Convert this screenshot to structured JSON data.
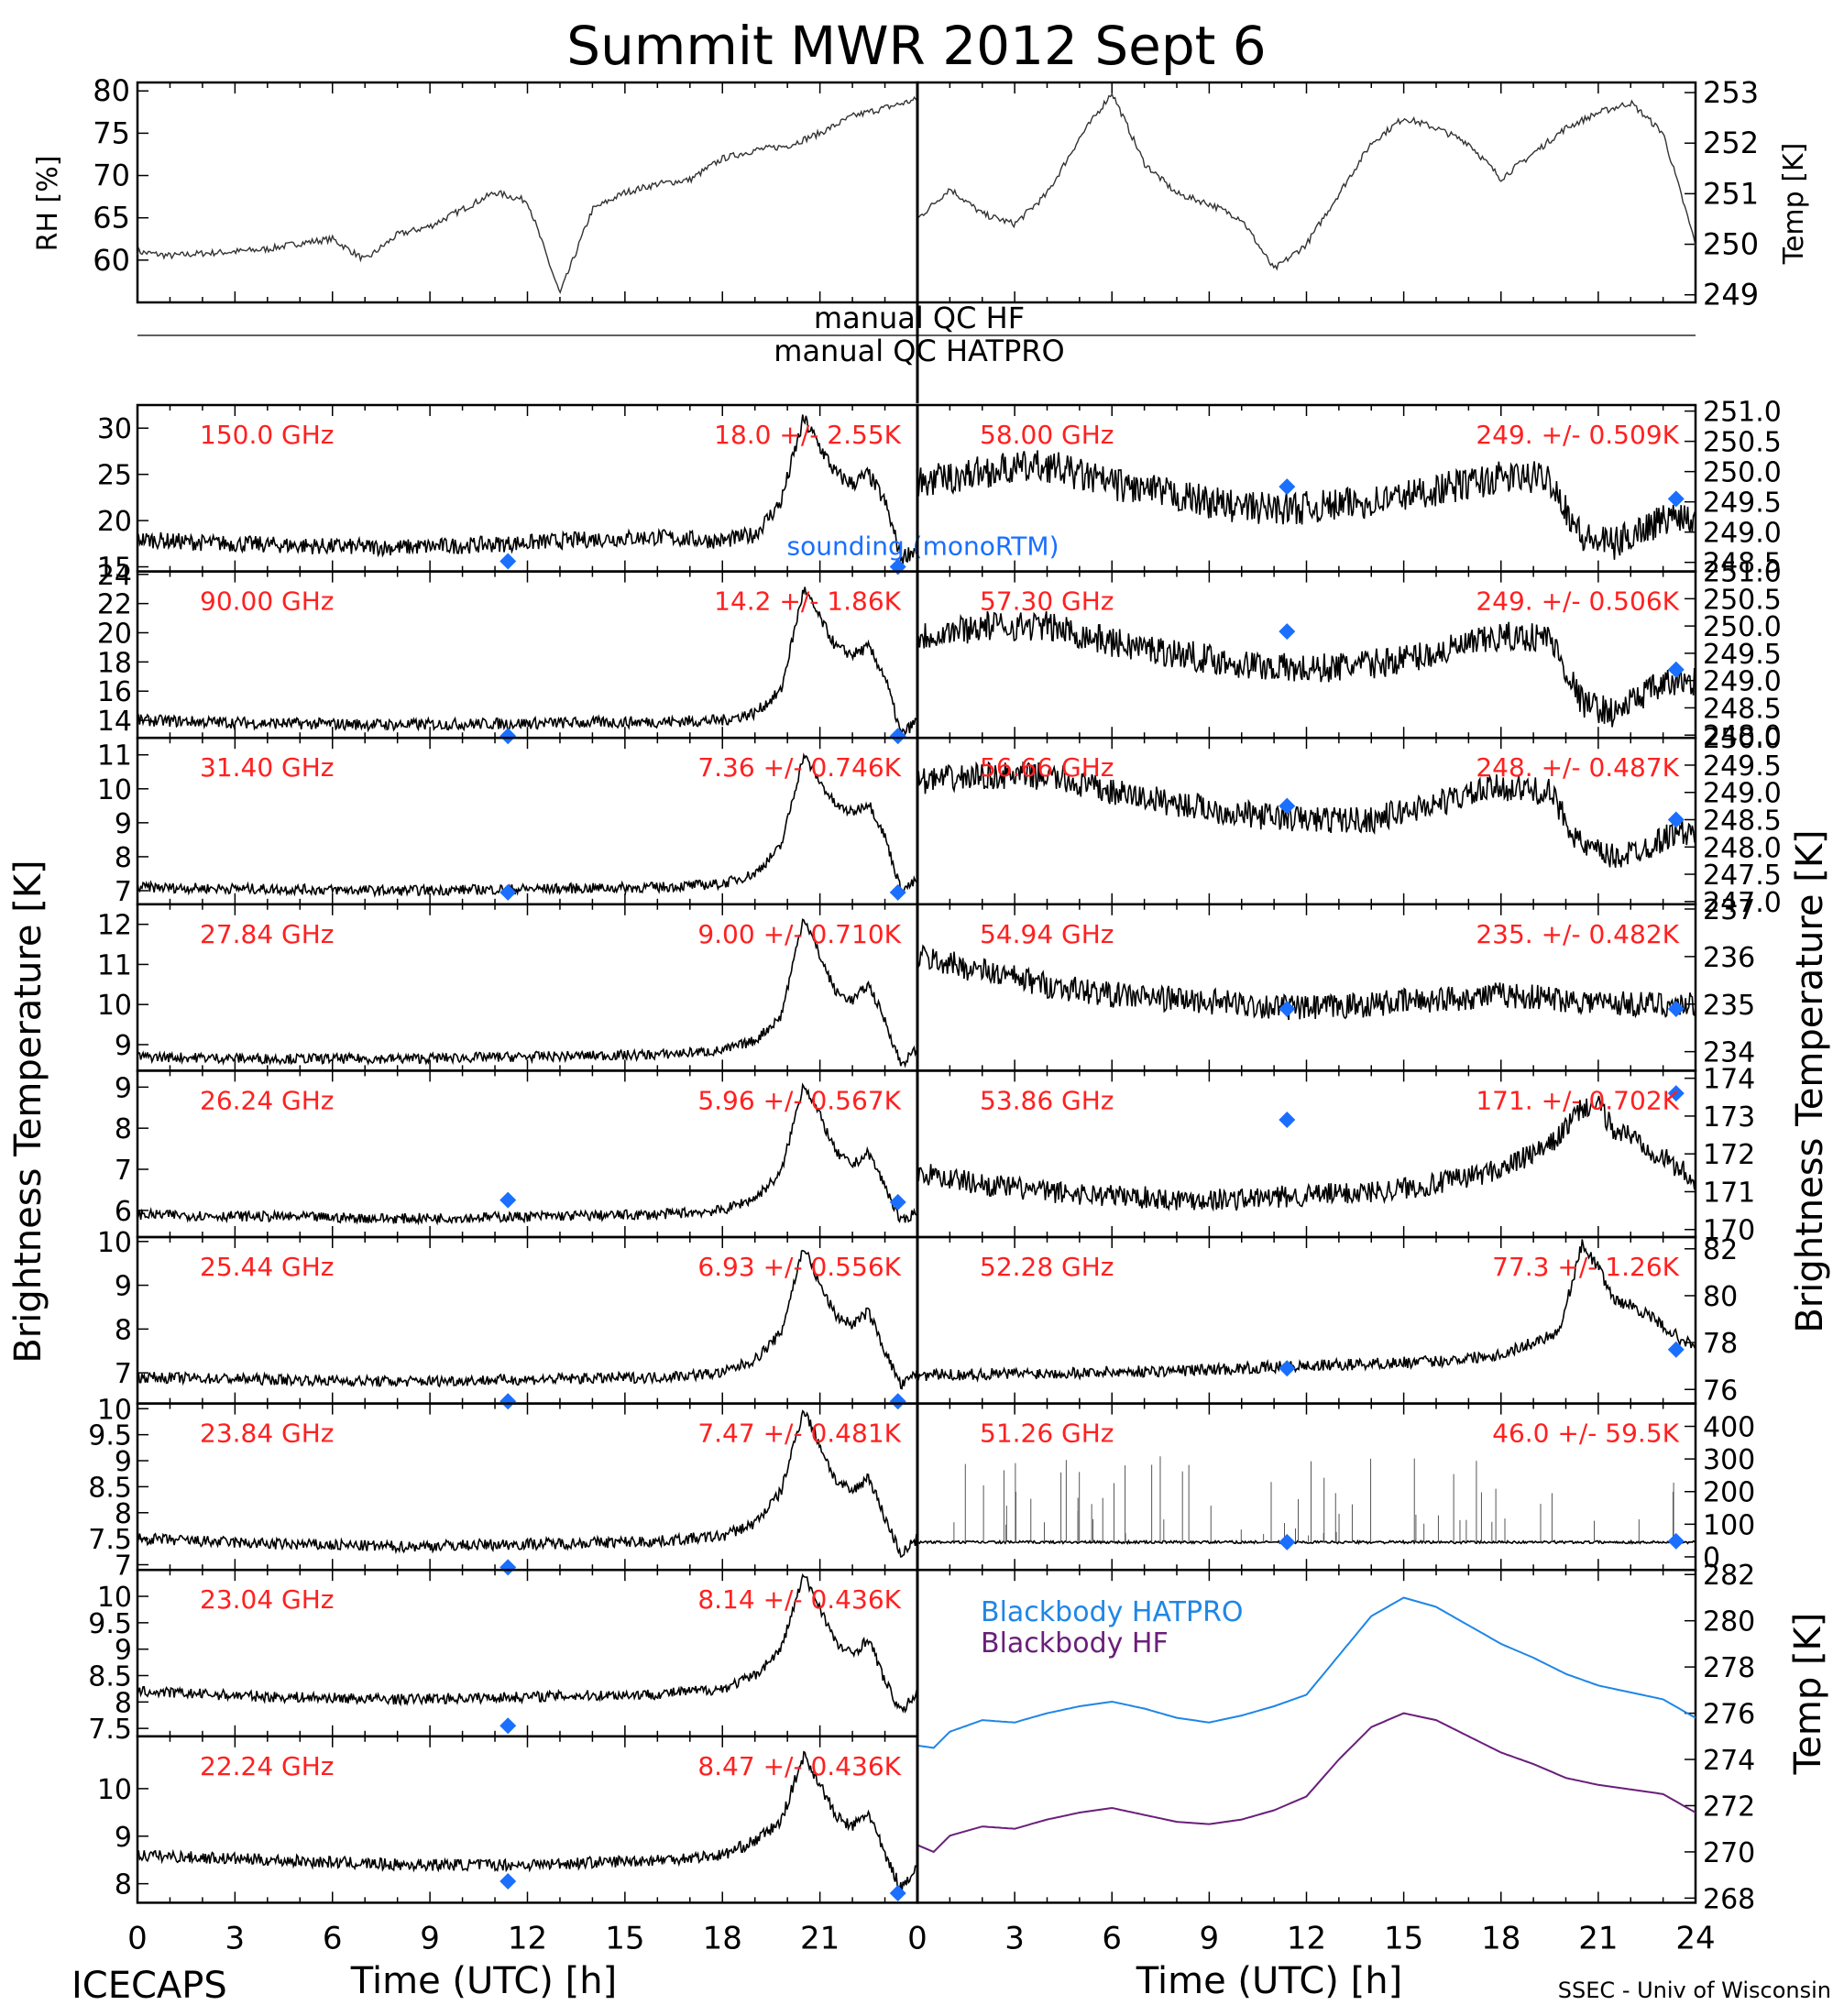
{
  "title": "Summit MWR 2012 Sept  6",
  "footer": {
    "left": "ICECAPS",
    "right": "SSEC - Univ of Wisconsin",
    "xlabel_left": "Time (UTC) [h]",
    "xlabel_right": "Time (UTC) [h]"
  },
  "ylabels": {
    "left": "Brightness Temperature [K]",
    "right": "Brightness Temperature [K]",
    "rh": "RH [%]",
    "temp_top": "Temp [K]",
    "temp_bottom": "Temp [K]"
  },
  "qc": {
    "hf": "manual QC HF",
    "hatpro": "manual QC HATPRO"
  },
  "legend": {
    "sounding": "sounding (monoRTM)",
    "bb_hatpro": "Blackbody HATPRO",
    "bb_hf": "Blackbody HF"
  },
  "colors": {
    "label": "#ff2020",
    "sounding": "#1a6fff",
    "hatpro": "#1f86e6",
    "hf": "#6a1f7a",
    "trace": "#000000"
  },
  "chart_data": [
    {
      "id": "rh",
      "type": "line",
      "ylabel": "RH [%]",
      "xlim": [
        0,
        24
      ],
      "ylim": [
        55,
        81
      ],
      "yticks": [
        60,
        65,
        70,
        75,
        80
      ],
      "x": [
        0,
        1,
        2,
        3,
        4,
        5,
        6,
        7,
        8,
        9,
        10,
        11,
        12,
        13,
        14,
        15,
        16,
        17,
        18,
        19,
        20,
        21,
        22,
        23,
        24
      ],
      "values": [
        61,
        60.5,
        60.8,
        61,
        61.3,
        62,
        62.5,
        60,
        63,
        64,
        66,
        68,
        67,
        56,
        66,
        68,
        69,
        69.5,
        72,
        73,
        73.5,
        75,
        77,
        78,
        79
      ]
    },
    {
      "id": "temp_top",
      "type": "line",
      "ylabel": "Temp [K]",
      "xlim": [
        0,
        24
      ],
      "ylim": [
        248.85,
        253.2
      ],
      "yticks": [
        249,
        250,
        251,
        252,
        253
      ],
      "x": [
        0,
        1,
        2,
        3,
        4,
        5,
        6,
        7,
        8,
        9,
        10,
        11,
        12,
        13,
        14,
        15,
        16,
        17,
        18,
        19,
        20,
        21,
        22,
        23,
        24
      ],
      "values": [
        250.5,
        251.1,
        250.6,
        250.4,
        251,
        252.1,
        253,
        251.6,
        251,
        250.8,
        250.5,
        249.5,
        250,
        251,
        252,
        252.5,
        252.3,
        252.0,
        251.3,
        251.8,
        252.3,
        252.6,
        252.8,
        252.2,
        250
      ]
    },
    {
      "id": "p150",
      "type": "line",
      "freq": "150.0 GHz",
      "stat": "18.0 +/- 2.55K",
      "ylim": [
        14.5,
        32.5
      ],
      "yticks": [
        15,
        20,
        25,
        30
      ],
      "x": [
        0,
        2,
        4,
        6,
        8,
        10,
        12,
        14,
        16,
        18,
        19,
        19.8,
        20.5,
        21,
        21.5,
        22,
        22.5,
        23,
        23.5,
        24
      ],
      "values": [
        18,
        17.6,
        17.4,
        17.2,
        17.1,
        17.3,
        17.6,
        18,
        18.2,
        17.8,
        18.5,
        22,
        31,
        28,
        25,
        24,
        25,
        22,
        16,
        17
      ],
      "noise": 1.8,
      "sounding": [
        [
          11.4,
          15.6
        ],
        [
          23.4,
          15
        ]
      ],
      "sounding_label": true
    },
    {
      "id": "p90",
      "type": "line",
      "freq": "90.00 GHz",
      "stat": "14.2 +/- 1.86K",
      "ylim": [
        12.8,
        24.2
      ],
      "yticks": [
        14,
        16,
        18,
        20,
        22,
        24
      ],
      "x": [
        0,
        4,
        8,
        12,
        16,
        18,
        19,
        19.8,
        20.5,
        21,
        21.5,
        22,
        22.5,
        23,
        23.5,
        24
      ],
      "values": [
        14,
        13.8,
        13.7,
        13.8,
        13.9,
        14,
        14.5,
        16,
        23,
        21,
        19,
        18.5,
        19,
        17,
        13,
        14
      ],
      "noise": 0.8,
      "sounding": [
        [
          11.4,
          12.9
        ],
        [
          23.4,
          12.9
        ]
      ]
    },
    {
      "id": "p31",
      "type": "line",
      "freq": "31.40 GHz",
      "stat": "7.36 +/- 0.746K",
      "ylim": [
        6.6,
        11.5
      ],
      "yticks": [
        7,
        8,
        9,
        10,
        11
      ],
      "x": [
        0,
        4,
        8,
        12,
        16,
        18,
        19,
        19.8,
        20.5,
        21,
        21.5,
        22,
        22.5,
        23,
        23.5,
        24
      ],
      "values": [
        7.1,
        7.05,
        7.0,
        7.05,
        7.1,
        7.2,
        7.5,
        8.3,
        11,
        10.2,
        9.5,
        9.3,
        9.6,
        8.6,
        7.0,
        7.3
      ],
      "noise": 0.3,
      "sounding": [
        [
          11.4,
          6.95
        ],
        [
          23.4,
          6.95
        ]
      ]
    },
    {
      "id": "p27",
      "type": "line",
      "freq": "27.84 GHz",
      "stat": "9.00 +/- 0.710K",
      "ylim": [
        8.35,
        12.5
      ],
      "yticks": [
        9,
        10,
        11,
        12
      ],
      "x": [
        0,
        4,
        8,
        12,
        16,
        18,
        19,
        19.8,
        20.5,
        21,
        21.5,
        22,
        22.5,
        23,
        23.5,
        24
      ],
      "values": [
        8.7,
        8.65,
        8.65,
        8.7,
        8.75,
        8.85,
        9.1,
        9.7,
        12.2,
        11.2,
        10.3,
        10.1,
        10.5,
        9.6,
        8.5,
        8.9
      ],
      "noise": 0.25,
      "sounding": []
    },
    {
      "id": "p26",
      "type": "line",
      "freq": "26.24 GHz",
      "stat": "5.96 +/- 0.567K",
      "ylim": [
        5.35,
        9.4
      ],
      "yticks": [
        6,
        7,
        8,
        9
      ],
      "x": [
        0,
        4,
        8,
        12,
        16,
        18,
        19,
        19.8,
        20.5,
        21,
        21.5,
        22,
        22.5,
        23,
        23.5,
        24
      ],
      "values": [
        5.9,
        5.85,
        5.8,
        5.85,
        5.9,
        6.0,
        6.3,
        6.9,
        9.1,
        8.3,
        7.4,
        7.1,
        7.4,
        6.6,
        5.7,
        6.0
      ],
      "noise": 0.25,
      "sounding": [
        [
          11.4,
          6.25
        ],
        [
          23.4,
          6.2
        ]
      ]
    },
    {
      "id": "p25",
      "type": "line",
      "freq": "25.44 GHz",
      "stat": "6.93 +/- 0.556K",
      "ylim": [
        6.3,
        10.1
      ],
      "yticks": [
        7,
        8,
        9,
        10
      ],
      "x": [
        0,
        4,
        8,
        12,
        16,
        18,
        19,
        19.8,
        20.5,
        21,
        21.5,
        22,
        22.5,
        23,
        23.5,
        24
      ],
      "values": [
        6.9,
        6.85,
        6.8,
        6.85,
        6.9,
        7.0,
        7.3,
        7.9,
        9.9,
        9.0,
        8.3,
        8.1,
        8.4,
        7.5,
        6.7,
        7.0
      ],
      "noise": 0.25,
      "sounding": [
        [
          11.4,
          6.35
        ],
        [
          23.4,
          6.35
        ]
      ]
    },
    {
      "id": "p23_84",
      "type": "line",
      "freq": "23.84 GHz",
      "stat": "7.47 +/- 0.481K",
      "ylim": [
        6.9,
        10.1
      ],
      "yticks": [
        7.0,
        7.5,
        8.0,
        8.5,
        9.0,
        9.5,
        10.0
      ],
      "x": [
        0,
        4,
        8,
        12,
        16,
        18,
        19,
        19.8,
        20.5,
        21,
        21.5,
        22,
        22.5,
        23,
        23.5,
        24
      ],
      "values": [
        7.5,
        7.4,
        7.35,
        7.4,
        7.45,
        7.55,
        7.8,
        8.4,
        10.0,
        9.3,
        8.6,
        8.4,
        8.7,
        7.9,
        7.2,
        7.5
      ],
      "noise": 0.22,
      "sounding": [
        [
          11.4,
          6.95
        ]
      ]
    },
    {
      "id": "p23_04",
      "type": "line",
      "freq": "23.04 GHz",
      "stat": "8.14 +/- 0.436K",
      "ylim": [
        7.35,
        10.5
      ],
      "yticks": [
        7.5,
        8.0,
        8.5,
        9.0,
        9.5,
        10.0
      ],
      "x": [
        0,
        4,
        8,
        12,
        16,
        18,
        19,
        19.8,
        20.5,
        21,
        21.5,
        22,
        22.5,
        23,
        23.5,
        24
      ],
      "values": [
        8.2,
        8.1,
        8.05,
        8.1,
        8.15,
        8.25,
        8.5,
        9.0,
        10.4,
        9.8,
        9.1,
        8.9,
        9.2,
        8.4,
        7.8,
        8.2
      ],
      "noise": 0.2,
      "sounding": [
        [
          11.4,
          7.55
        ]
      ]
    },
    {
      "id": "p22",
      "type": "line",
      "freq": "22.24 GHz",
      "stat": "8.47 +/- 0.436K",
      "ylim": [
        7.6,
        11.1
      ],
      "yticks": [
        8,
        9,
        10
      ],
      "x": [
        0,
        4,
        8,
        12,
        16,
        18,
        19,
        19.8,
        20.5,
        21,
        21.5,
        22,
        22.5,
        23,
        23.5,
        24
      ],
      "values": [
        8.6,
        8.5,
        8.4,
        8.4,
        8.5,
        8.6,
        8.9,
        9.3,
        10.7,
        10.1,
        9.4,
        9.2,
        9.5,
        8.6,
        7.9,
        8.4
      ],
      "noise": 0.25,
      "sounding": [
        [
          11.4,
          8.05
        ],
        [
          23.4,
          7.8
        ]
      ]
    },
    {
      "id": "p58",
      "type": "line",
      "freq": "58.00 GHz",
      "stat": "249. +/- 0.509K",
      "ylim": [
        248.35,
        251.1
      ],
      "yticks": [
        248.5,
        249.0,
        249.5,
        250.0,
        250.5,
        251.0
      ],
      "ytick_labels": [
        "248.5",
        "249.0",
        "249.5",
        "250.0",
        "250.5",
        "251.0"
      ],
      "x": [
        0,
        2,
        4,
        6,
        8,
        10,
        12,
        14,
        16,
        18,
        19.5,
        20.5,
        21.5,
        22.5,
        23.5,
        24
      ],
      "values": [
        249.8,
        250.0,
        250.1,
        249.8,
        249.6,
        249.4,
        249.4,
        249.5,
        249.7,
        249.9,
        249.9,
        248.9,
        248.8,
        249.1,
        249.3,
        249.2
      ],
      "noise": 0.55,
      "sounding": [
        [
          11.4,
          249.75
        ],
        [
          23.4,
          249.55
        ]
      ]
    },
    {
      "id": "p57",
      "type": "line",
      "freq": "57.30 GHz",
      "stat": "249. +/- 0.506K",
      "ylim": [
        247.95,
        251.0
      ],
      "yticks": [
        248.0,
        248.5,
        249.0,
        249.5,
        250.0,
        250.5,
        251.0
      ],
      "ytick_labels": [
        "248.0",
        "248.5",
        "249.0",
        "249.5",
        "250.0",
        "250.5",
        "251.0"
      ],
      "x": [
        0,
        2,
        4,
        6,
        8,
        10,
        12,
        14,
        16,
        18,
        19.5,
        20.5,
        21.5,
        22.5,
        23.5,
        24
      ],
      "values": [
        249.8,
        250.0,
        250.0,
        249.7,
        249.5,
        249.3,
        249.2,
        249.3,
        249.5,
        249.8,
        249.8,
        248.6,
        248.4,
        248.8,
        249.0,
        249.0
      ],
      "noise": 0.55,
      "sounding": [
        [
          11.4,
          249.9
        ],
        [
          23.4,
          249.2
        ]
      ]
    },
    {
      "id": "p56",
      "type": "line",
      "freq": "56.66 GHz",
      "stat": "248. +/- 0.487K",
      "ylim": [
        246.95,
        250.0
      ],
      "yticks": [
        247.0,
        247.5,
        248.0,
        248.5,
        249.0,
        249.5,
        250.0
      ],
      "ytick_labels": [
        "247.0",
        "247.5",
        "248.0",
        "248.5",
        "249.0",
        "249.5",
        "250.0"
      ],
      "x": [
        0,
        2,
        4,
        6,
        8,
        10,
        12,
        14,
        16,
        18,
        19.5,
        20.5,
        21.5,
        22.5,
        23.5,
        24
      ],
      "values": [
        249.2,
        249.3,
        249.3,
        249.0,
        248.8,
        248.6,
        248.5,
        248.5,
        248.8,
        249.1,
        249.0,
        248.0,
        247.8,
        248.0,
        248.3,
        248.2
      ],
      "noise": 0.5,
      "sounding": [
        [
          11.4,
          248.75
        ],
        [
          23.4,
          248.5
        ]
      ]
    },
    {
      "id": "p54",
      "type": "line",
      "freq": "54.94 GHz",
      "stat": "235. +/- 0.482K",
      "ylim": [
        233.6,
        237.1
      ],
      "yticks": [
        234,
        235,
        236,
        237
      ],
      "x": [
        0,
        2,
        4,
        6,
        8,
        10,
        12,
        14,
        16,
        18,
        20,
        22,
        24
      ],
      "values": [
        236.0,
        235.7,
        235.4,
        235.2,
        235.1,
        235.0,
        234.9,
        235.0,
        235.1,
        235.2,
        235.1,
        235.0,
        235.0
      ],
      "noise": 0.55,
      "sounding": [
        [
          11.4,
          234.9
        ],
        [
          23.4,
          234.9
        ]
      ]
    },
    {
      "id": "p53",
      "type": "line",
      "freq": "53.86 GHz",
      "stat": "171. +/- 0.702K",
      "ylim": [
        169.8,
        174.2
      ],
      "yticks": [
        170,
        171,
        172,
        173,
        174
      ],
      "x": [
        0,
        2,
        4,
        6,
        8,
        10,
        12,
        14,
        16,
        18,
        19.5,
        20.5,
        21,
        21.5,
        22,
        23,
        24
      ],
      "values": [
        171.5,
        171.2,
        171.0,
        170.9,
        170.8,
        170.8,
        170.9,
        171.0,
        171.2,
        171.6,
        172.2,
        173.2,
        173.3,
        172.6,
        172.5,
        171.9,
        171.3
      ],
      "noise": 0.6,
      "sounding": [
        [
          11.4,
          172.9
        ],
        [
          23.4,
          173.6
        ]
      ]
    },
    {
      "id": "p52",
      "type": "line",
      "freq": "52.28 GHz",
      "stat": "77.3 +/- 1.26K",
      "ylim": [
        75.4,
        82.5
      ],
      "yticks": [
        76,
        78,
        80,
        82
      ],
      "x": [
        0,
        4,
        8,
        12,
        16,
        18,
        19,
        19.8,
        20.5,
        21,
        21.5,
        22,
        22.5,
        23,
        23.5,
        24
      ],
      "values": [
        76.6,
        76.7,
        76.8,
        77.0,
        77.2,
        77.5,
        78.0,
        78.5,
        82.2,
        81.2,
        79.8,
        79.6,
        79.2,
        78.7,
        78.2,
        77.8
      ],
      "noise": 0.5,
      "sounding": [
        [
          11.4,
          76.9
        ],
        [
          23.4,
          77.7
        ]
      ]
    },
    {
      "id": "p51",
      "type": "line",
      "freq": "51.26 GHz",
      "stat": "46.0 +/- 59.5K",
      "ylim": [
        -40,
        470
      ],
      "yticks": [
        0,
        100,
        200,
        300,
        400
      ],
      "x": [
        0,
        24
      ],
      "values": [
        45,
        45
      ],
      "noise": 8,
      "spikes": true,
      "sounding": [
        [
          11.4,
          45
        ],
        [
          23.4,
          48
        ]
      ]
    },
    {
      "id": "bb",
      "type": "line",
      "ylabel": "Temp [K]",
      "xlim": [
        0,
        24
      ],
      "ylim": [
        267.8,
        282.2
      ],
      "yticks": [
        268,
        270,
        272,
        274,
        276,
        278,
        280,
        282
      ],
      "series": [
        {
          "name": "Blackbody HATPRO",
          "x": [
            0,
            0.5,
            1,
            2,
            3,
            4,
            5,
            6,
            7,
            8,
            9,
            10,
            11,
            12,
            13,
            14,
            15,
            16,
            17,
            18,
            19,
            20,
            21,
            22,
            23,
            24
          ],
          "values": [
            274.6,
            274.5,
            275.2,
            275.7,
            275.6,
            276.0,
            276.3,
            276.5,
            276.2,
            275.8,
            275.6,
            275.9,
            276.3,
            276.8,
            278.5,
            280.2,
            281.0,
            280.6,
            279.8,
            279.0,
            278.4,
            277.7,
            277.2,
            276.9,
            276.6,
            275.8
          ]
        },
        {
          "name": "Blackbody HF",
          "x": [
            0,
            0.5,
            1,
            2,
            3,
            4,
            5,
            6,
            7,
            8,
            9,
            10,
            11,
            12,
            13,
            14,
            15,
            16,
            17,
            18,
            19,
            20,
            21,
            22,
            23,
            24
          ],
          "values": [
            270.3,
            270.0,
            270.7,
            271.1,
            271.0,
            271.4,
            271.7,
            271.9,
            271.6,
            271.3,
            271.2,
            271.4,
            271.8,
            272.4,
            274.0,
            275.4,
            276.0,
            275.7,
            275.0,
            274.3,
            273.8,
            273.2,
            272.9,
            272.7,
            272.5,
            271.7
          ]
        }
      ]
    }
  ],
  "xaxis": {
    "ticks_left": [
      "0",
      "3",
      "6",
      "9",
      "12",
      "15",
      "18",
      "21"
    ],
    "ticks_right": [
      "0",
      "3",
      "6",
      "9",
      "12",
      "15",
      "18",
      "21",
      "24"
    ]
  }
}
